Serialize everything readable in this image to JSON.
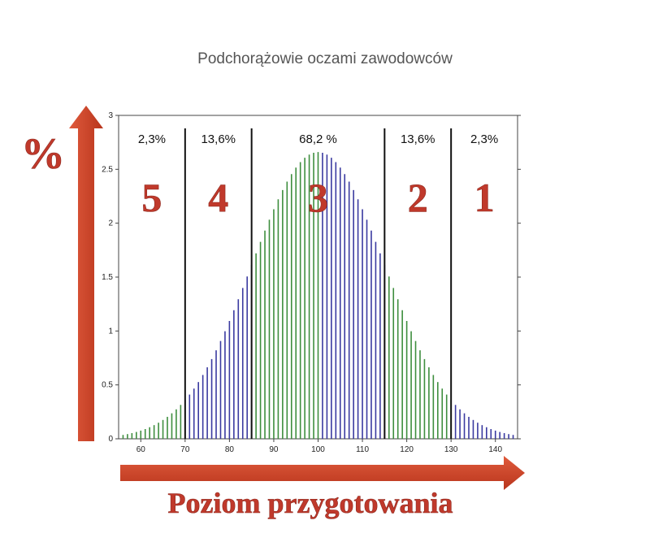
{
  "slide": {
    "title": "Podchorążowie oczami zawodowców",
    "y_symbol": "%",
    "x_title": "Poziom przygotowania"
  },
  "colors": {
    "green_bar": "#3e8e3e",
    "blue_bar": "#3a3aa0",
    "arrow": "#d4452a",
    "number": "#c0392b"
  },
  "chart_data": {
    "type": "bar",
    "distribution": "normal",
    "mean": 100,
    "sd": 15,
    "x_start": 56,
    "x_end": 144,
    "x_step": 1,
    "xlim": [
      55,
      145
    ],
    "ylim": [
      0,
      3
    ],
    "x_ticks": [
      "60",
      "70",
      "80",
      "90",
      "100",
      "110",
      "120",
      "130",
      "140"
    ],
    "y_ticks": [
      "0",
      "0.5",
      "1",
      "1.5",
      "2",
      "2.5",
      "3"
    ],
    "dividers": [
      70,
      85,
      115,
      130
    ],
    "zones": [
      {
        "percent": "2,3%",
        "number": "5"
      },
      {
        "percent": "13,6%",
        "number": "4"
      },
      {
        "percent": "68,2 %",
        "number": "3"
      },
      {
        "percent": "13,6%",
        "number": "2"
      },
      {
        "percent": "2,3%",
        "number": "1"
      }
    ],
    "bar_color_pattern": [
      {
        "from": 56,
        "to": 70,
        "color": "green"
      },
      {
        "from": 71,
        "to": 85,
        "color": "blue"
      },
      {
        "from": 86,
        "to": 100,
        "color": "green"
      },
      {
        "from": 101,
        "to": 115,
        "color": "blue"
      },
      {
        "from": 116,
        "to": 130,
        "color": "green"
      },
      {
        "from": 131,
        "to": 144,
        "color": "blue"
      }
    ]
  }
}
